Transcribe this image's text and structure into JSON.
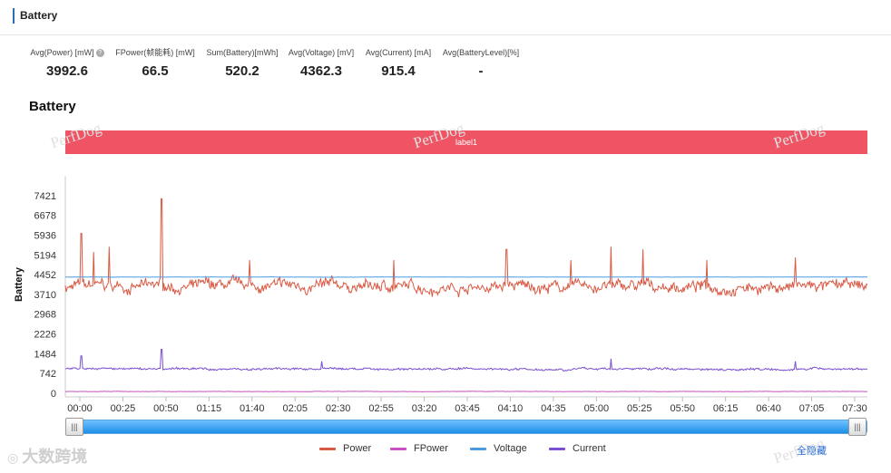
{
  "panel": {
    "title": "Battery"
  },
  "stats": [
    {
      "label": "Avg(Power) [mW]",
      "value": "3992.6",
      "has_help": true
    },
    {
      "label": "FPower(帧能耗) [mW]",
      "value": "66.5"
    },
    {
      "label": "Sum(Battery)[mWh]",
      "value": "520.2"
    },
    {
      "label": "Avg(Voltage) [mV]",
      "value": "4362.3"
    },
    {
      "label": "Avg(Current) [mA]",
      "value": "915.4"
    },
    {
      "label": "Avg(BatteryLevel)[%]",
      "value": "-"
    }
  ],
  "help_glyph": "?",
  "section_title": "Battery",
  "label_band": {
    "text": "label1",
    "color": "#ee5463"
  },
  "watermark_text": "PerfDog",
  "brand_text": "大数跨境",
  "hide_all_label": "全隐藏",
  "slider": {
    "start": 0,
    "end": 1,
    "handle_glyph": "|||"
  },
  "chart_data": {
    "type": "line",
    "ylabel": "Battery",
    "xlabel": "",
    "y_ticks": [
      0,
      742,
      1484,
      2226,
      2968,
      3710,
      4452,
      5194,
      5936,
      6678,
      7421
    ],
    "ylim": [
      0,
      8163
    ],
    "x_ticks": [
      "00:00",
      "00:25",
      "00:50",
      "01:15",
      "01:40",
      "02:05",
      "02:30",
      "02:55",
      "03:20",
      "03:45",
      "04:10",
      "04:35",
      "05:00",
      "05:25",
      "05:50",
      "06:15",
      "06:40",
      "07:05",
      "07:30"
    ],
    "x_range_seconds": [
      0,
      27500
    ],
    "grid": false,
    "legend_position": "bottom",
    "series": [
      {
        "name": "Power",
        "color": "#d85a44",
        "baseline": 3993,
        "noise": 300,
        "spikes": [
          [
            0.02,
            6000
          ],
          [
            0.035,
            5300
          ],
          [
            0.055,
            5500
          ],
          [
            0.12,
            7300
          ],
          [
            0.23,
            5000
          ],
          [
            0.41,
            5000
          ],
          [
            0.55,
            5400
          ],
          [
            0.63,
            5000
          ],
          [
            0.68,
            5500
          ],
          [
            0.72,
            5400
          ],
          [
            0.8,
            5000
          ],
          [
            0.91,
            5100
          ]
        ]
      },
      {
        "name": "FPower",
        "color": "#c850c0",
        "baseline": 66,
        "noise": 8,
        "spikes": []
      },
      {
        "name": "Voltage",
        "color": "#4a9be0",
        "baseline": 4362,
        "noise": 8,
        "spikes": []
      },
      {
        "name": "Current",
        "color": "#7a4fd0",
        "baseline": 915,
        "noise": 60,
        "spikes": [
          [
            0.02,
            1400
          ],
          [
            0.12,
            1650
          ],
          [
            0.32,
            1200
          ],
          [
            0.68,
            1300
          ],
          [
            0.91,
            1200
          ]
        ]
      }
    ]
  }
}
